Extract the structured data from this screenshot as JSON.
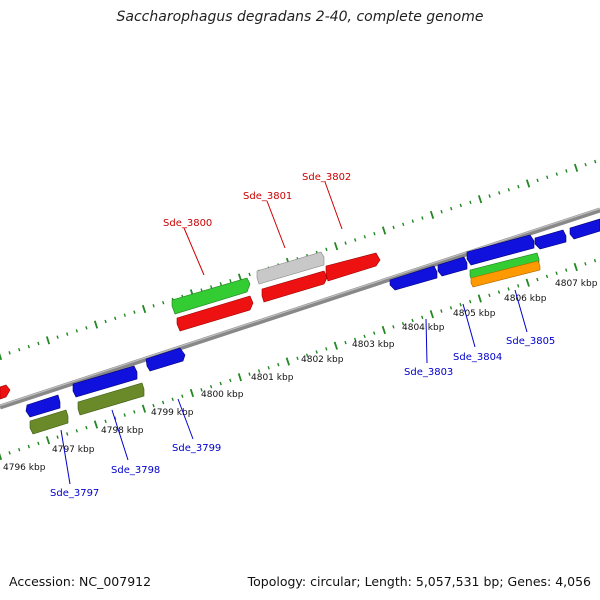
{
  "title": "Saccharophagus degradans 2-40, complete genome",
  "footer": {
    "accession": "Accession: NC_007912",
    "summary": "Topology: circular; Length: 5,057,531 bp; Genes: 4,056"
  },
  "colors": {
    "red": "#ee1111",
    "green": "#33cc33",
    "blue": "#1111dd",
    "olive": "#6a8a2a",
    "gray": "#c8c8c8",
    "orange": "#ff9900",
    "tick": "#228822",
    "backbone": "#888888",
    "label_top": "#cc0000",
    "label_bottom": "#0000cc"
  },
  "kbp_labels": [
    "4796 kbp",
    "4797 kbp",
    "4798 kbp",
    "4799 kbp",
    "4800 kbp",
    "4801 kbp",
    "4802 kbp",
    "4803 kbp",
    "4804 kbp",
    "4805 kbp",
    "4806 kbp",
    "4807 kbp"
  ],
  "gene_labels_top": [
    "Sde_3800",
    "Sde_3801",
    "Sde_3802"
  ],
  "gene_labels_bottom": [
    "Sde_3797",
    "Sde_3798",
    "Sde_3799",
    "Sde_3803",
    "Sde_3804",
    "Sde_3805"
  ]
}
